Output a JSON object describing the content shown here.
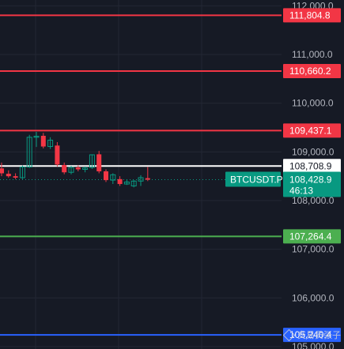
{
  "chart_data": {
    "type": "candlestick",
    "symbol_label": "BTCUSDT.P",
    "last_price_label": "108,428.9",
    "countdown_label": "46:13",
    "ylim": [
      104950,
      112120
    ],
    "y_ticks": [
      {
        "value": 112000,
        "label": "112,000.0"
      },
      {
        "value": 111000,
        "label": "111,000.0"
      },
      {
        "value": 110000,
        "label": "110,000.0"
      },
      {
        "value": 109000,
        "label": "109,000.0"
      },
      {
        "value": 108000,
        "label": "108,000.0"
      },
      {
        "value": 107000,
        "label": "107,000.0"
      },
      {
        "value": 106000,
        "label": "106,000.0"
      },
      {
        "value": 105000,
        "label": "105,000.0"
      }
    ],
    "levels": [
      {
        "value": 111804.8,
        "label": "111,804.8",
        "color": "#f23645",
        "style": "solid"
      },
      {
        "value": 110660.2,
        "label": "110,660.2",
        "color": "#f23645",
        "style": "solid"
      },
      {
        "value": 109437.1,
        "label": "109,437.1",
        "color": "#f23645",
        "style": "solid"
      },
      {
        "value": 108708.9,
        "label": "108,708.9",
        "color": "#ffffff",
        "style": "solid"
      },
      {
        "value": 107264.4,
        "label": "107,264.4",
        "color": "#4caf50",
        "style": "solid"
      },
      {
        "value": 105240.4,
        "label": "105,240.4",
        "color": "#2962ff",
        "style": "solid"
      }
    ],
    "current_price": 108428.9,
    "candles": [
      {
        "o": 108660,
        "h": 108780,
        "l": 108500,
        "c": 108560
      },
      {
        "o": 108550,
        "h": 108620,
        "l": 108470,
        "c": 108500
      },
      {
        "o": 108500,
        "h": 108560,
        "l": 108440,
        "c": 108470
      },
      {
        "o": 108470,
        "h": 108720,
        "l": 108440,
        "c": 108690
      },
      {
        "o": 108690,
        "h": 109350,
        "l": 108670,
        "c": 109300
      },
      {
        "o": 109300,
        "h": 109410,
        "l": 109100,
        "c": 109320
      },
      {
        "o": 109330,
        "h": 109390,
        "l": 109070,
        "c": 109110
      },
      {
        "o": 109110,
        "h": 109300,
        "l": 109060,
        "c": 109240
      },
      {
        "o": 109130,
        "h": 109200,
        "l": 108700,
        "c": 108740
      },
      {
        "o": 108730,
        "h": 108780,
        "l": 108540,
        "c": 108580
      },
      {
        "o": 108580,
        "h": 108710,
        "l": 108540,
        "c": 108680
      },
      {
        "o": 108680,
        "h": 108720,
        "l": 108600,
        "c": 108640
      },
      {
        "o": 108640,
        "h": 108700,
        "l": 108580,
        "c": 108670
      },
      {
        "o": 108680,
        "h": 108950,
        "l": 108650,
        "c": 108940
      },
      {
        "o": 108950,
        "h": 109020,
        "l": 108560,
        "c": 108600
      },
      {
        "o": 108600,
        "h": 108640,
        "l": 108380,
        "c": 108420
      },
      {
        "o": 108420,
        "h": 108560,
        "l": 108340,
        "c": 108530
      },
      {
        "o": 108440,
        "h": 108500,
        "l": 108300,
        "c": 108340
      },
      {
        "o": 108340,
        "h": 108430,
        "l": 108320,
        "c": 108380
      },
      {
        "o": 108300,
        "h": 108420,
        "l": 108270,
        "c": 108400
      },
      {
        "o": 108400,
        "h": 108520,
        "l": 108300,
        "c": 108470
      },
      {
        "o": 108460,
        "h": 108690,
        "l": 108400,
        "c": 108429
      }
    ],
    "colors": {
      "up": "#089981",
      "down": "#f23645",
      "background": "#161a25",
      "grid": "#232734",
      "text": "#b2b5be",
      "tag_last": "#089981"
    }
  },
  "watermark": {
    "text": "交易员张子",
    "icon": "diamond-icon"
  }
}
